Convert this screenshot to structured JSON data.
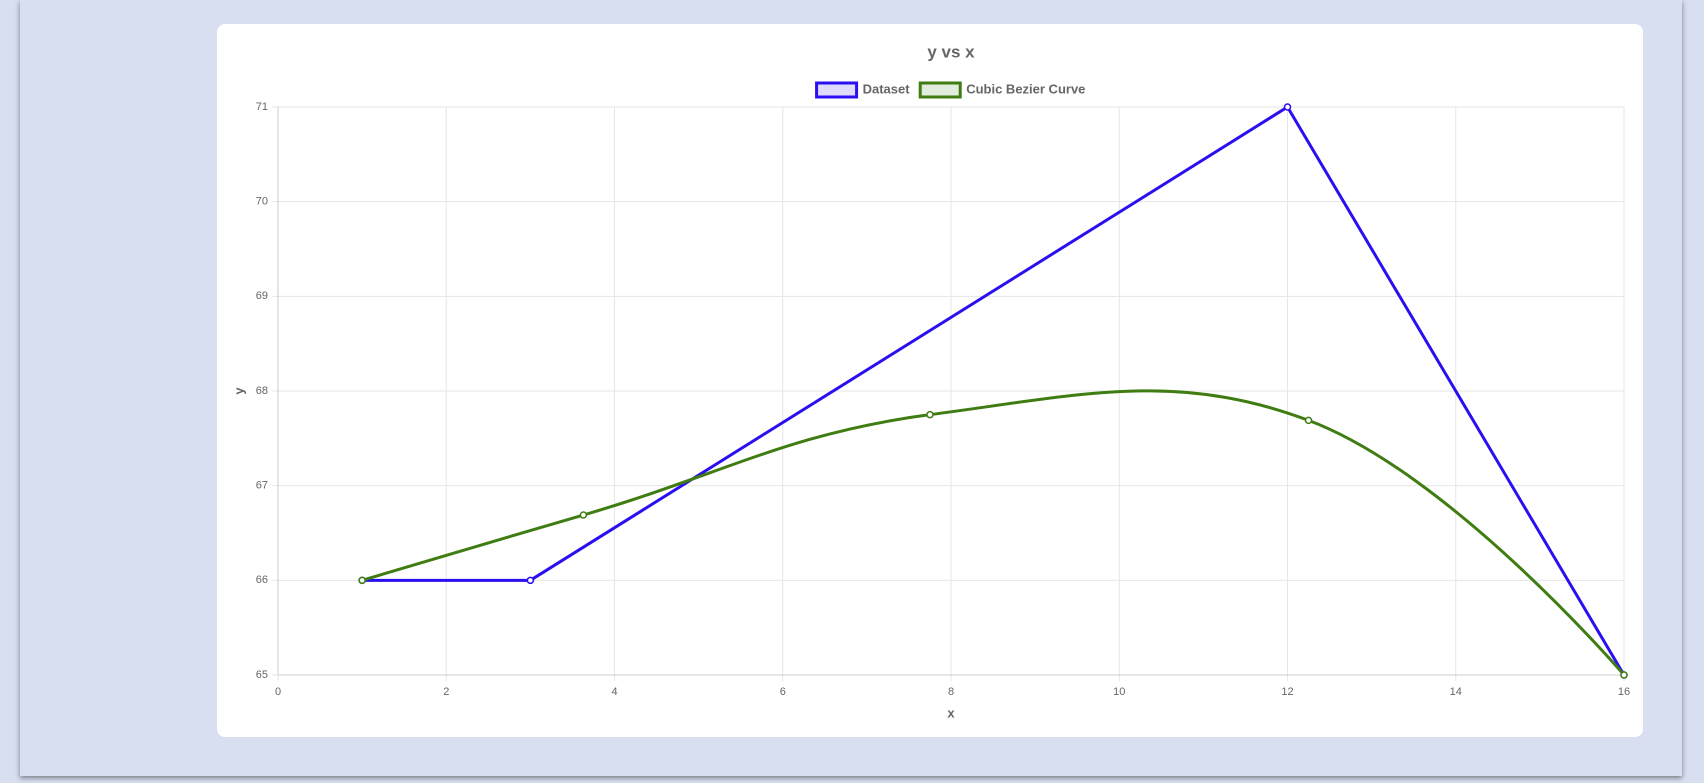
{
  "chart_data": {
    "type": "line",
    "title": "y vs x",
    "xlabel": "x",
    "ylabel": "y",
    "series": [
      {
        "name": "Dataset",
        "color": "#2a0ff0",
        "x": [
          1,
          3,
          12,
          16
        ],
        "values": [
          66,
          66,
          71,
          65
        ],
        "smooth": false
      },
      {
        "name": "Cubic Bezier Curve",
        "color": "#3f7d12",
        "x": [
          1,
          3.63,
          7.75,
          12.25,
          16
        ],
        "values": [
          66,
          66.69,
          67.75,
          67.69,
          65
        ],
        "smooth": true
      }
    ],
    "xlim": [
      0,
      16
    ],
    "xticks": [
      0,
      2,
      4,
      6,
      8,
      10,
      12,
      14,
      16
    ],
    "ylim": [
      65,
      71
    ],
    "yticks": [
      65,
      66,
      67,
      68,
      69,
      70,
      71
    ],
    "grid": true,
    "legend": "top"
  }
}
